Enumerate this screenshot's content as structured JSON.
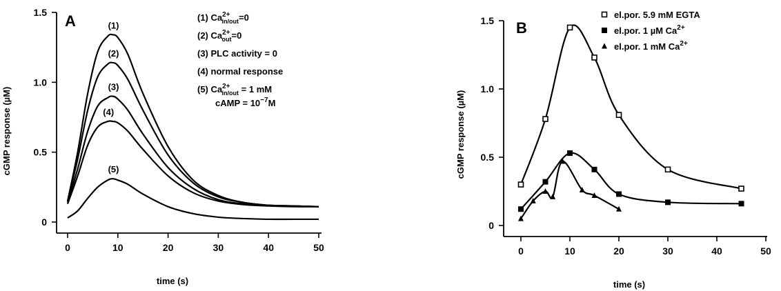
{
  "chart_data": [
    {
      "type": "line",
      "panel_label": "A",
      "xlabel": "time (s)",
      "ylabel": "cGMP response (µM)",
      "xlim": [
        0,
        50
      ],
      "ylim": [
        0,
        1.5
      ],
      "xticks": [
        0,
        10,
        20,
        30,
        40,
        50
      ],
      "yticks": [
        0,
        0.5,
        1.0,
        1.5
      ],
      "ytick_labels": [
        "0",
        "0.5",
        "1.0",
        "1.5"
      ],
      "grid": false,
      "legend": [
        {
          "main": "(1) Ca",
          "sup": "2+",
          "sub": "in/out",
          "rest": "=0"
        },
        {
          "main": "(2) Ca",
          "sup": "2+",
          "sub": "out",
          "rest": "=0"
        },
        {
          "main": "(3) PLC activity = 0"
        },
        {
          "main": "(4) normal response"
        },
        {
          "main": "(5) Ca",
          "sup": "2+",
          "sub": "in/out",
          "rest": " = 1 mM"
        },
        {
          "main": "cAMP = 10",
          "sup": "−7",
          "rest": "M"
        }
      ],
      "series": [
        {
          "name": "(1)",
          "x": [
            0,
            2,
            4,
            6,
            8,
            9,
            10,
            12,
            15,
            20,
            25,
            30,
            35,
            40,
            45,
            50
          ],
          "y": [
            0.15,
            0.5,
            0.92,
            1.22,
            1.33,
            1.34,
            1.32,
            1.2,
            0.92,
            0.54,
            0.3,
            0.19,
            0.14,
            0.12,
            0.115,
            0.11
          ]
        },
        {
          "name": "(2)",
          "x": [
            0,
            2,
            4,
            6,
            8,
            9,
            10,
            12,
            15,
            20,
            25,
            30,
            35,
            40,
            45,
            50
          ],
          "y": [
            0.15,
            0.45,
            0.8,
            1.04,
            1.13,
            1.14,
            1.12,
            1.02,
            0.8,
            0.48,
            0.28,
            0.18,
            0.14,
            0.12,
            0.115,
            0.11
          ]
        },
        {
          "name": "(3)",
          "x": [
            0,
            2,
            4,
            6,
            8,
            9,
            10,
            12,
            15,
            20,
            25,
            30,
            35,
            40,
            45,
            50
          ],
          "y": [
            0.14,
            0.38,
            0.65,
            0.83,
            0.89,
            0.9,
            0.88,
            0.8,
            0.63,
            0.39,
            0.24,
            0.16,
            0.13,
            0.12,
            0.115,
            0.11
          ]
        },
        {
          "name": "(4)",
          "x": [
            0,
            2,
            4,
            6,
            8,
            9,
            10,
            12,
            15,
            20,
            25,
            30,
            35,
            40,
            45,
            50
          ],
          "y": [
            0.13,
            0.33,
            0.55,
            0.68,
            0.72,
            0.72,
            0.71,
            0.65,
            0.52,
            0.33,
            0.21,
            0.15,
            0.125,
            0.115,
            0.11,
            0.11
          ]
        },
        {
          "name": "(5)",
          "x": [
            0,
            2,
            4,
            6,
            8,
            9,
            10,
            12,
            15,
            20,
            25,
            30,
            35,
            40,
            45,
            50
          ],
          "y": [
            0.03,
            0.08,
            0.17,
            0.25,
            0.3,
            0.31,
            0.3,
            0.27,
            0.2,
            0.11,
            0.06,
            0.035,
            0.025,
            0.02,
            0.02,
            0.02
          ]
        }
      ]
    },
    {
      "type": "line",
      "panel_label": "B",
      "xlabel": "time (s)",
      "ylabel": "cGMP response (µM)",
      "xlim": [
        0,
        50
      ],
      "ylim": [
        0,
        1.5
      ],
      "xticks": [
        0,
        10,
        20,
        30,
        40,
        50
      ],
      "yticks": [
        0,
        0.5,
        1.0,
        1.5
      ],
      "ytick_labels": [
        "0",
        "0.5",
        "1.0",
        "1.5"
      ],
      "grid": false,
      "legend_placement": "top-right",
      "series": [
        {
          "name": "el.por. 5.9 mM EGTA",
          "marker": "open-square",
          "x": [
            0,
            5,
            10,
            15,
            20,
            30,
            45
          ],
          "y": [
            0.3,
            0.78,
            1.45,
            1.23,
            0.81,
            0.41,
            0.27
          ]
        },
        {
          "name": "el.por. 1 µM Ca",
          "name_sup": "2+",
          "marker": "filled-square",
          "x": [
            0,
            5,
            10,
            15,
            20,
            30,
            45
          ],
          "y": [
            0.12,
            0.32,
            0.53,
            0.41,
            0.23,
            0.17,
            0.16
          ]
        },
        {
          "name": "el.por. 1 mM Ca",
          "name_sup": "2+",
          "marker": "filled-triangle",
          "x": [
            0,
            2.5,
            5,
            6.5,
            8.5,
            12.5,
            15,
            20
          ],
          "y": [
            0.05,
            0.18,
            0.25,
            0.21,
            0.47,
            0.26,
            0.22,
            0.12
          ]
        }
      ]
    }
  ]
}
